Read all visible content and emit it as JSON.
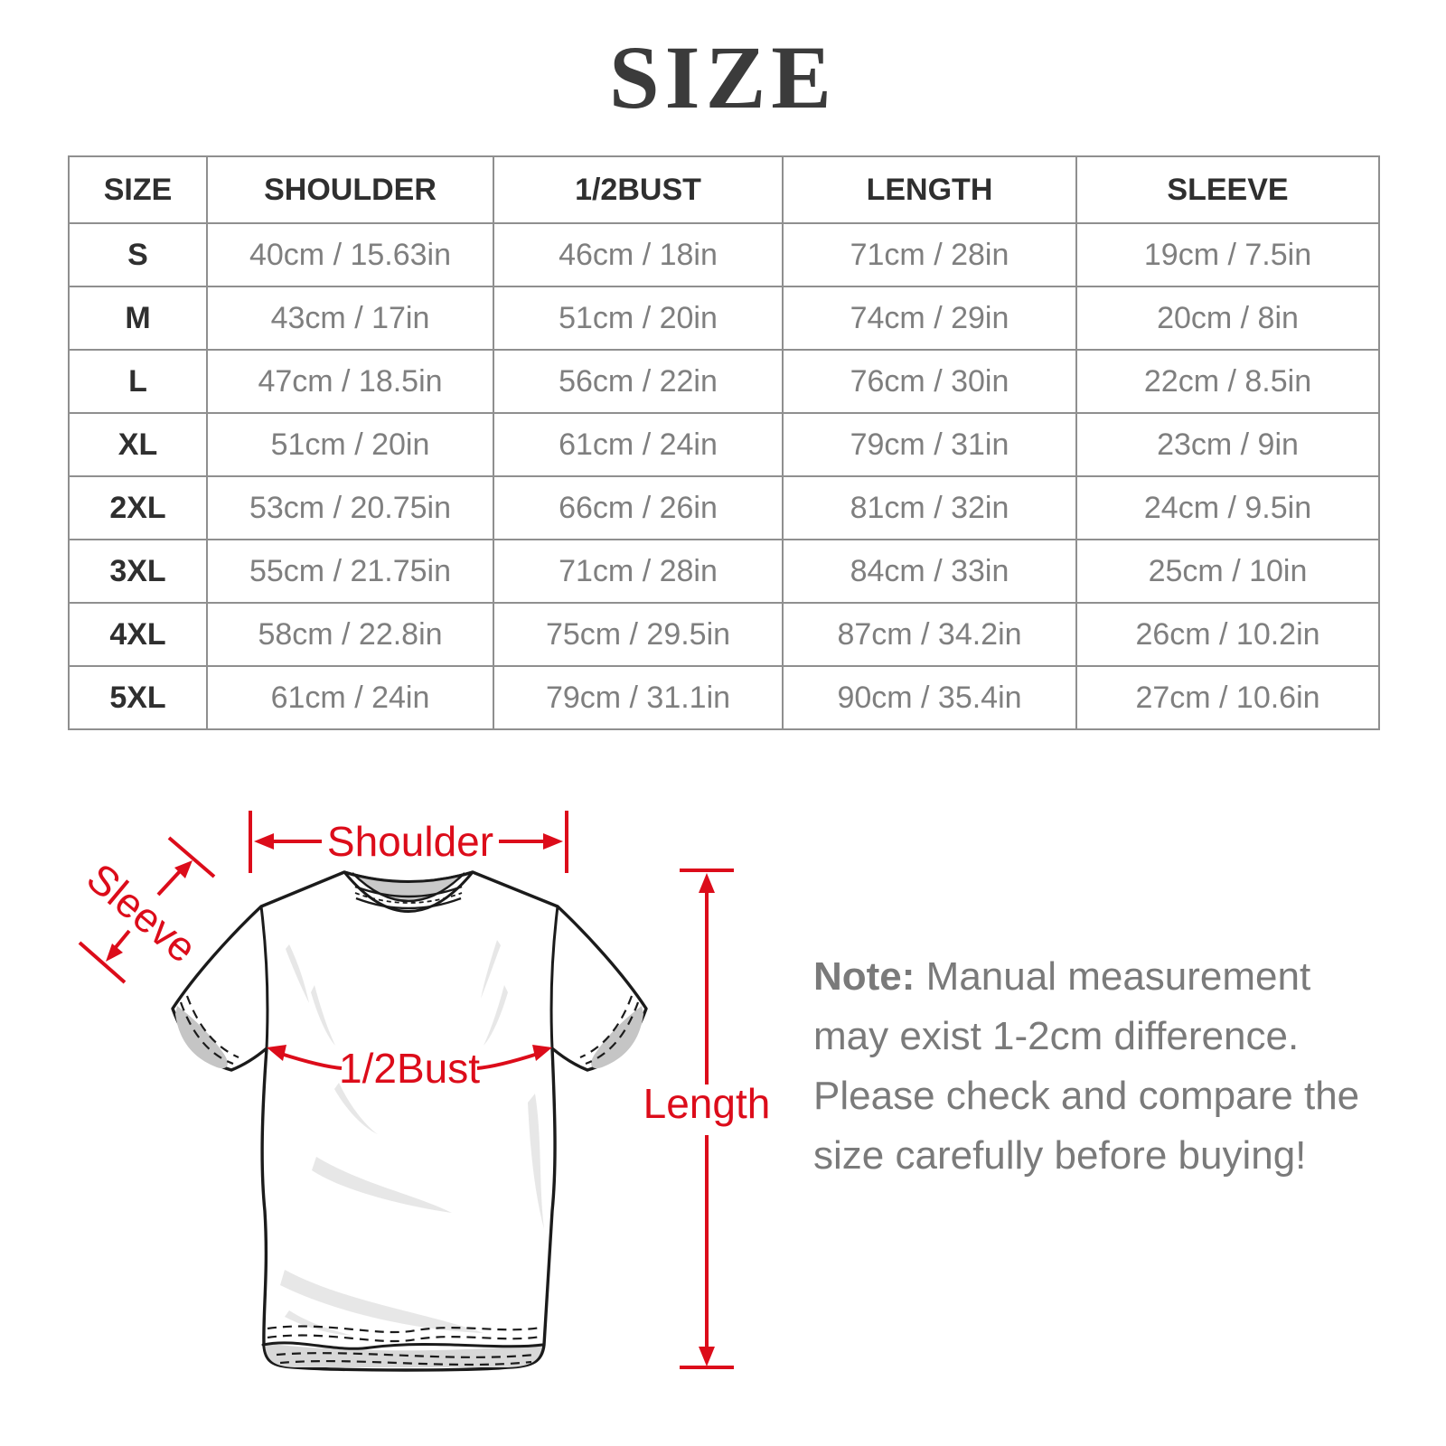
{
  "title": "SIZE",
  "table": {
    "headers": [
      "SIZE",
      "SHOULDER",
      "1/2BUST",
      "LENGTH",
      "SLEEVE"
    ],
    "rows": [
      [
        "S",
        "40cm / 15.63in",
        "46cm / 18in",
        "71cm / 28in",
        "19cm / 7.5in"
      ],
      [
        "M",
        "43cm / 17in",
        "51cm / 20in",
        "74cm / 29in",
        "20cm / 8in"
      ],
      [
        "L",
        "47cm / 18.5in",
        "56cm / 22in",
        "76cm / 30in",
        "22cm / 8.5in"
      ],
      [
        "XL",
        "51cm / 20in",
        "61cm / 24in",
        "79cm / 31in",
        "23cm / 9in"
      ],
      [
        "2XL",
        "53cm / 20.75in",
        "66cm / 26in",
        "81cm / 32in",
        "24cm / 9.5in"
      ],
      [
        "3XL",
        "55cm / 21.75in",
        "71cm / 28in",
        "84cm / 33in",
        "25cm / 10in"
      ],
      [
        "4XL",
        "58cm / 22.8in",
        "75cm / 29.5in",
        "87cm / 34.2in",
        "26cm / 10.2in"
      ],
      [
        "5XL",
        "61cm / 24in",
        "79cm / 31.1in",
        "90cm / 35.4in",
        "27cm / 10.6in"
      ]
    ]
  },
  "diagram": {
    "shoulder_label": "Shoulder",
    "sleeve_label": "Sleeve",
    "bust_label": "1/2Bust",
    "length_label": "Length"
  },
  "note": {
    "label": "Note:",
    "body": " Manual measurement may exist 1-2cm difference. Please check and compare the size carefully before buying!"
  },
  "colors": {
    "accent_red": "#dc0c1a",
    "table_border": "#8f8f8f",
    "text_dark": "#2f2f2f",
    "text_gray": "#7f7f7f",
    "note_gray": "#7a7a7a",
    "title_color": "#3b3b3b",
    "outline_dark": "#1b1b1b",
    "collar_gray": "#c9c9c9",
    "cuff_gray": "#c5c5c5",
    "hem_gray": "#d8d8d8",
    "wrinkle_gray": "#e7e7e7"
  }
}
